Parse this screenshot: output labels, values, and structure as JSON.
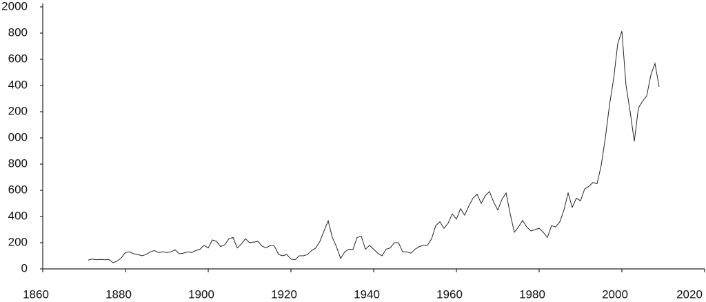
{
  "chart_data": {
    "type": "line",
    "x": [
      1871,
      1872,
      1873,
      1874,
      1875,
      1876,
      1877,
      1878,
      1879,
      1880,
      1881,
      1882,
      1883,
      1884,
      1885,
      1886,
      1887,
      1888,
      1889,
      1890,
      1891,
      1892,
      1893,
      1894,
      1895,
      1896,
      1897,
      1898,
      1899,
      1900,
      1901,
      1902,
      1903,
      1904,
      1905,
      1906,
      1907,
      1908,
      1909,
      1910,
      1911,
      1912,
      1913,
      1914,
      1915,
      1916,
      1917,
      1918,
      1919,
      1920,
      1921,
      1922,
      1923,
      1924,
      1925,
      1926,
      1927,
      1928,
      1929,
      1930,
      1931,
      1932,
      1933,
      1934,
      1935,
      1936,
      1937,
      1938,
      1939,
      1940,
      1941,
      1942,
      1943,
      1944,
      1945,
      1946,
      1947,
      1948,
      1949,
      1950,
      1951,
      1952,
      1953,
      1954,
      1955,
      1956,
      1957,
      1958,
      1959,
      1960,
      1961,
      1962,
      1963,
      1964,
      1965,
      1966,
      1967,
      1968,
      1969,
      1970,
      1971,
      1972,
      1973,
      1974,
      1975,
      1976,
      1977,
      1978,
      1979,
      1980,
      1981,
      1982,
      1983,
      1984,
      1985,
      1986,
      1987,
      1988,
      1989,
      1990,
      1991,
      1992,
      1993,
      1994,
      1995,
      1996,
      1997,
      1998,
      1999,
      2000,
      2001,
      2002,
      2003,
      2004,
      2005,
      2006,
      2007,
      2008,
      2009
    ],
    "series": [
      {
        "color": "#222222",
        "values": [
          68,
          75,
          70,
          72,
          70,
          72,
          47,
          60,
          85,
          126,
          130,
          115,
          110,
          100,
          110,
          130,
          140,
          125,
          130,
          125,
          130,
          145,
          115,
          120,
          130,
          125,
          140,
          150,
          180,
          160,
          221,
          210,
          170,
          185,
          230,
          240,
          160,
          190,
          230,
          200,
          205,
          210,
          175,
          160,
          180,
          175,
          110,
          100,
          110,
          75,
          70,
          100,
          100,
          110,
          140,
          160,
          210,
          290,
          368,
          240,
          170,
          80,
          130,
          150,
          150,
          240,
          250,
          150,
          180,
          150,
          120,
          100,
          150,
          160,
          200,
          200,
          130,
          130,
          120,
          150,
          170,
          180,
          180,
          230,
          330,
          360,
          310,
          350,
          420,
          380,
          460,
          410,
          480,
          540,
          570,
          500,
          560,
          590,
          510,
          450,
          530,
          580,
          420,
          280,
          320,
          370,
          320,
          290,
          300,
          310,
          280,
          240,
          330,
          320,
          360,
          450,
          580,
          470,
          540,
          520,
          610,
          630,
          660,
          650,
          790,
          1000,
          1250,
          1450,
          1720,
          1815,
          1400,
          1200,
          973,
          1230,
          1280,
          1320,
          1480,
          1568,
          1390
        ]
      }
    ],
    "xlim": [
      1860,
      2020
    ],
    "xticks": [
      1860,
      1880,
      1900,
      1920,
      1940,
      1960,
      1980,
      2000,
      2020
    ],
    "ylim": [
      0,
      2000
    ],
    "yticks": [
      0,
      200,
      400,
      600,
      800,
      {
        "value": 1000,
        "label": "000"
      },
      {
        "value": 1200,
        "label": "200"
      },
      {
        "value": 1400,
        "label": "400"
      },
      {
        "value": 1600,
        "label": "600"
      },
      {
        "value": 1800,
        "label": "800"
      },
      2000
    ]
  }
}
